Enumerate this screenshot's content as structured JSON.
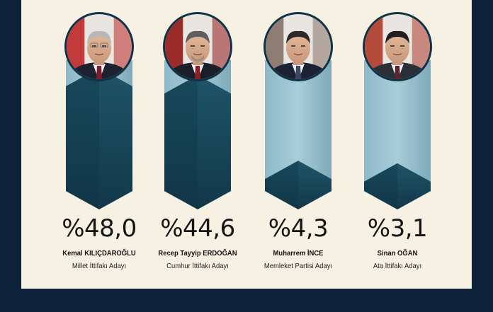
{
  "colors": {
    "background": "#0d2238",
    "card": "#f7f1e4",
    "bar_light": "#9dc3d1",
    "bar_light_edge": "#7eaab9",
    "bar_dark": "#1b4a5e",
    "bar_dark_edge": "#0e3344",
    "photo_ring": "#0f3345"
  },
  "chart_data": {
    "type": "bar",
    "ylim": [
      0,
      50
    ],
    "categories": [
      "Kemal KILIÇDAROĞLU",
      "Recep Tayyip ERDOĞAN",
      "Muharrem İNCE",
      "Sinan OĞAN"
    ],
    "values": [
      48.0,
      44.6,
      4.3,
      3.1
    ],
    "value_labels": [
      "%48,0",
      "%44,6",
      "%4,3",
      "%3,1"
    ],
    "candidates": [
      {
        "first": "Kemal",
        "last": "KILIÇDAROĞLU",
        "alliance": "Millet İttifakı Adayı",
        "percent_label": "%48,0",
        "value": 48.0
      },
      {
        "first": "Recep Tayyip",
        "last": "ERDOĞAN",
        "alliance": "Cumhur İttifakı Adayı",
        "percent_label": "%44,6",
        "value": 44.6
      },
      {
        "first": "Muharrem",
        "last": "İNCE",
        "alliance": "Memleket Partisi Adayı",
        "percent_label": "%4,3",
        "value": 4.3
      },
      {
        "first": "Sinan",
        "last": "OĞAN",
        "alliance": "Ata İttifakı Adayı",
        "percent_label": "%3,1",
        "value": 3.1
      }
    ]
  }
}
